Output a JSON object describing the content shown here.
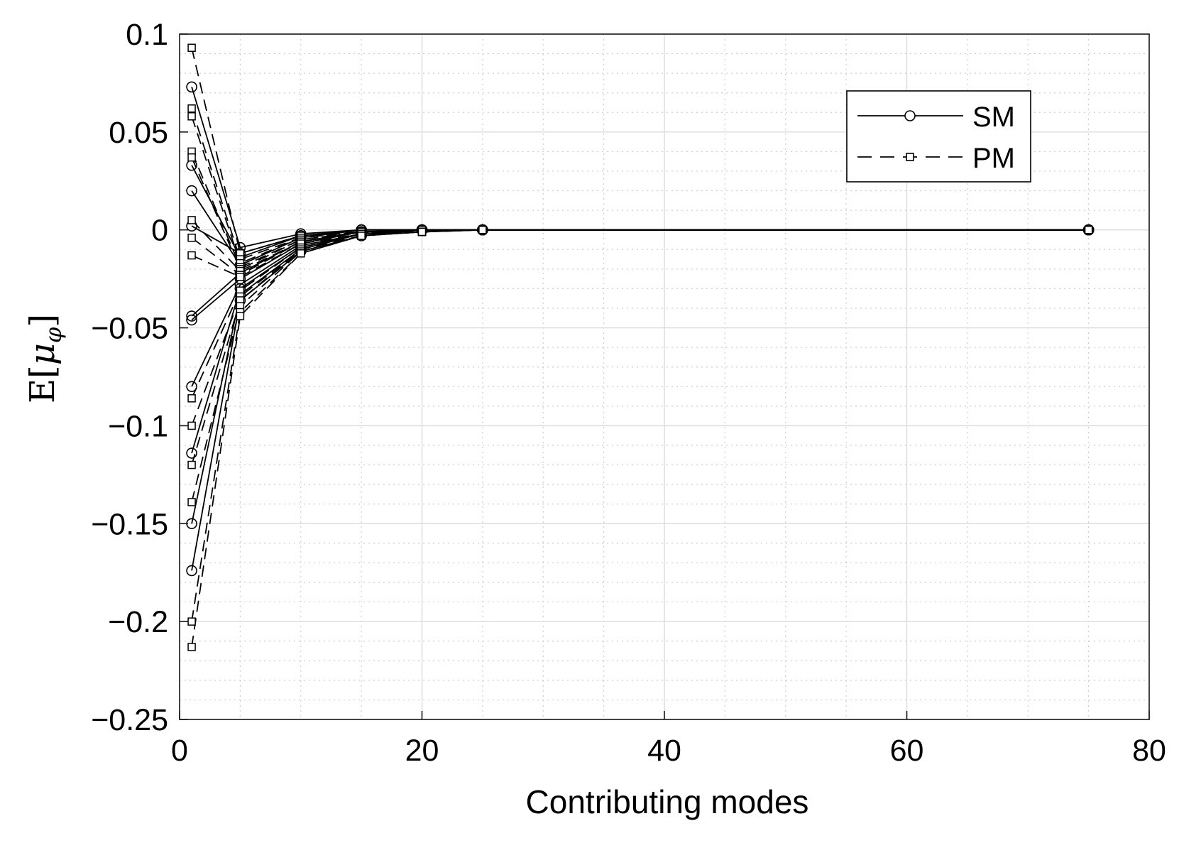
{
  "chart_data": {
    "type": "line",
    "title": "",
    "xlabel": "Contributing modes",
    "ylabel": "E[μ_φ]",
    "ylabel_parts": {
      "base": "E[",
      "mu": "μ",
      "sub": "φ",
      "close": "]"
    },
    "xlim": [
      0,
      80
    ],
    "ylim": [
      -0.25,
      0.1
    ],
    "xticks": [
      0,
      20,
      40,
      60,
      80
    ],
    "xtick_labels": [
      "0",
      "20",
      "40",
      "60",
      "80"
    ],
    "yticks": [
      0.1,
      0.05,
      0,
      -0.05,
      -0.1,
      -0.15,
      -0.2,
      -0.25
    ],
    "ytick_labels": [
      "0.1",
      "0.05",
      "0",
      "−0.05",
      "−0.1",
      "−0.15",
      "−0.2",
      "−0.25"
    ],
    "grid": true,
    "minor_grid": true,
    "legend_position": "top-right",
    "legend": [
      {
        "label": "SM",
        "style": "solid",
        "marker": "circle"
      },
      {
        "label": "PM",
        "style": "dashed",
        "marker": "square"
      }
    ],
    "x": [
      1,
      5,
      10,
      15,
      20,
      25,
      75
    ],
    "groups": [
      {
        "legend_label": "SM",
        "style": "solid",
        "marker": "circle",
        "curves": [
          [
            0.073,
            -0.009,
            -0.002,
            0.0,
            0.0,
            0.0,
            0.0
          ],
          [
            0.033,
            -0.014,
            -0.003,
            0.0,
            0.0,
            0.0,
            0.0
          ],
          [
            0.02,
            -0.018,
            -0.004,
            0.0,
            0.0,
            0.0,
            0.0
          ],
          [
            0.002,
            -0.012,
            -0.003,
            0.0,
            0.0,
            0.0,
            0.0
          ],
          [
            -0.044,
            -0.022,
            -0.006,
            -0.001,
            0.0,
            0.0,
            0.0
          ],
          [
            -0.046,
            -0.025,
            -0.007,
            -0.001,
            0.0,
            0.0,
            0.0
          ],
          [
            -0.08,
            -0.028,
            -0.008,
            -0.002,
            0.0,
            0.0,
            0.0
          ],
          [
            -0.114,
            -0.03,
            -0.009,
            -0.002,
            0.0,
            0.0,
            0.0
          ],
          [
            -0.15,
            -0.033,
            -0.01,
            -0.002,
            0.0,
            0.0,
            0.0
          ],
          [
            -0.174,
            -0.036,
            -0.011,
            -0.003,
            0.0,
            0.0,
            0.0
          ]
        ]
      },
      {
        "legend_label": "PM",
        "style": "dashed",
        "marker": "square",
        "curves": [
          [
            0.093,
            -0.012,
            -0.003,
            -0.001,
            0.0,
            0.0,
            0.0
          ],
          [
            0.062,
            -0.015,
            -0.004,
            -0.001,
            0.0,
            0.0,
            0.0
          ],
          [
            0.058,
            -0.017,
            -0.004,
            -0.001,
            0.0,
            0.0,
            0.0
          ],
          [
            0.04,
            -0.019,
            -0.005,
            -0.001,
            0.0,
            0.0,
            0.0
          ],
          [
            0.037,
            -0.02,
            -0.005,
            -0.001,
            0.0,
            0.0,
            0.0
          ],
          [
            0.005,
            -0.021,
            -0.006,
            -0.001,
            0.0,
            0.0,
            0.0
          ],
          [
            -0.004,
            -0.023,
            -0.006,
            -0.001,
            0.0,
            0.0,
            0.0
          ],
          [
            -0.013,
            -0.024,
            -0.007,
            -0.002,
            0.0,
            0.0,
            0.0
          ],
          [
            -0.086,
            -0.031,
            -0.009,
            -0.002,
            -0.001,
            0.0,
            0.0
          ],
          [
            -0.1,
            -0.034,
            -0.01,
            -0.002,
            -0.001,
            0.0,
            0.0
          ],
          [
            -0.12,
            -0.036,
            -0.01,
            -0.003,
            -0.001,
            0.0,
            0.0
          ],
          [
            -0.139,
            -0.039,
            -0.011,
            -0.003,
            -0.001,
            0.0,
            0.0
          ],
          [
            -0.2,
            -0.042,
            -0.012,
            -0.003,
            -0.001,
            0.0,
            0.0
          ],
          [
            -0.213,
            -0.044,
            -0.012,
            -0.003,
            -0.001,
            0.0,
            0.0
          ]
        ]
      }
    ]
  }
}
